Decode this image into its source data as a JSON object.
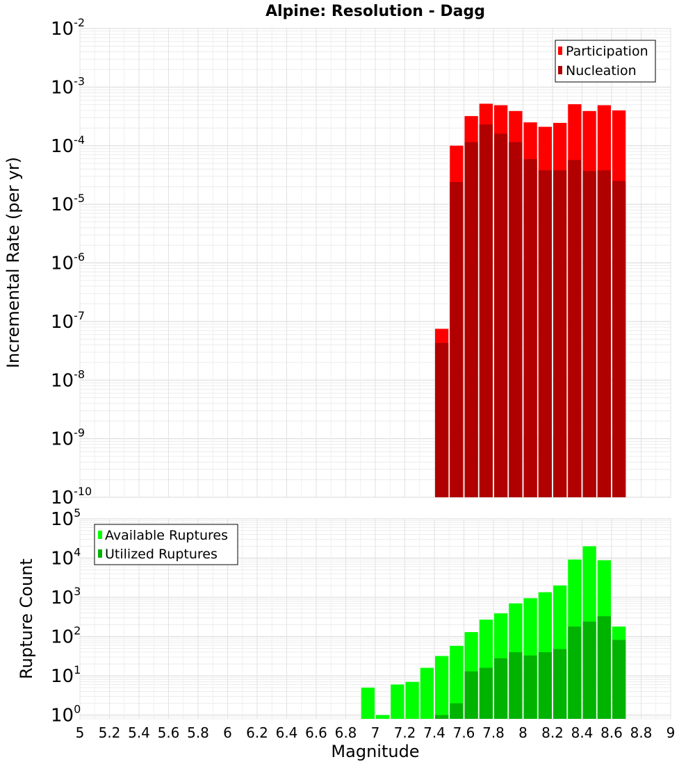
{
  "chart_data": [
    {
      "type": "bar",
      "title": "Alpine: Resolution - Dagg",
      "ylabel": "Incremental Rate (per yr)",
      "xlabel": "",
      "yscale": "log",
      "ylim": [
        1e-10,
        0.01
      ],
      "xlim": [
        5,
        9
      ],
      "grid": true,
      "legend_position": "top-right",
      "y_ticks": [
        {
          "base": "10",
          "exp": "-2"
        },
        {
          "base": "10",
          "exp": "-3"
        },
        {
          "base": "10",
          "exp": "-4"
        },
        {
          "base": "10",
          "exp": "-5"
        },
        {
          "base": "10",
          "exp": "-6"
        },
        {
          "base": "10",
          "exp": "-7"
        },
        {
          "base": "10",
          "exp": "-8"
        },
        {
          "base": "10",
          "exp": "-9"
        },
        {
          "base": "10",
          "exp": "-10"
        }
      ],
      "x": [
        7.45,
        7.55,
        7.65,
        7.75,
        7.85,
        7.95,
        8.05,
        8.15,
        8.25,
        8.35,
        8.45,
        8.55,
        8.65
      ],
      "series": [
        {
          "name": "Participation",
          "color": "#ff0000",
          "values": [
            7.5e-08,
            0.0001,
            0.00032,
            0.00052,
            0.00049,
            0.00039,
            0.00025,
            0.00021,
            0.000245,
            0.00051,
            0.00039,
            0.00049,
            0.0004
          ]
        },
        {
          "name": "Nucleation",
          "color": "#b00000",
          "values": [
            4.3e-08,
            2.4e-05,
            0.000115,
            0.00023,
            0.00016,
            0.000115,
            5.9e-05,
            3.8e-05,
            3.8e-05,
            5.7e-05,
            3.7e-05,
            3.8e-05,
            2.5e-05
          ]
        }
      ]
    },
    {
      "type": "bar",
      "title": "",
      "ylabel": "Rupture Count",
      "xlabel": "Magnitude",
      "yscale": "log",
      "ylim": [
        0.8,
        100000
      ],
      "xlim": [
        5,
        9
      ],
      "grid": true,
      "legend_position": "top-left",
      "y_ticks": [
        {
          "base": "10",
          "exp": "5"
        },
        {
          "base": "10",
          "exp": "4"
        },
        {
          "base": "10",
          "exp": "3"
        },
        {
          "base": "10",
          "exp": "2"
        },
        {
          "base": "10",
          "exp": "1"
        },
        {
          "base": "10",
          "exp": "0"
        }
      ],
      "x_tick_labels": [
        "5",
        "5.2",
        "5.4",
        "5.6",
        "5.8",
        "6",
        "6.2",
        "6.4",
        "6.6",
        "6.8",
        "7",
        "7.2",
        "7.4",
        "7.6",
        "7.8",
        "8",
        "8.2",
        "8.4",
        "8.6",
        "8.8",
        "9"
      ],
      "x": [
        6.95,
        7.05,
        7.15,
        7.25,
        7.35,
        7.45,
        7.55,
        7.65,
        7.75,
        7.85,
        7.95,
        8.05,
        8.15,
        8.25,
        8.35,
        8.45,
        8.55,
        8.65
      ],
      "series": [
        {
          "name": "Available Ruptures",
          "color": "#00ff00",
          "values": [
            5,
            1,
            6,
            7,
            16,
            32,
            58,
            130,
            270,
            390,
            700,
            950,
            1350,
            2000,
            9200,
            20000,
            8800,
            180
          ]
        },
        {
          "name": "Utilized Ruptures",
          "color": "#00b300",
          "values": [
            0,
            0,
            0,
            0,
            0,
            1,
            2,
            13,
            16,
            28,
            40,
            33,
            40,
            48,
            180,
            240,
            330,
            82
          ]
        }
      ]
    }
  ]
}
